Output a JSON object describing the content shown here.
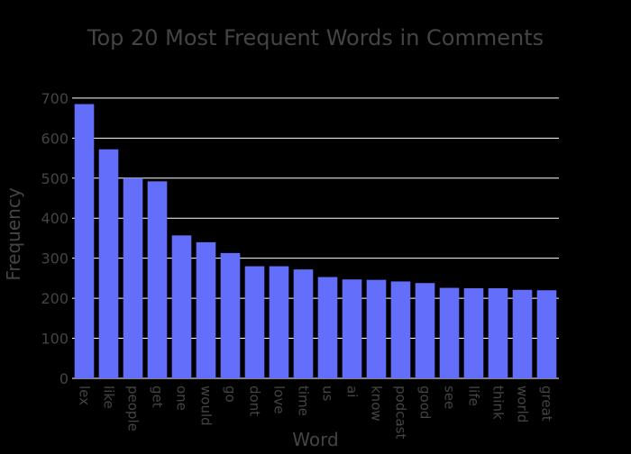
{
  "chart_data": {
    "type": "bar",
    "title": "Top 20 Most Frequent Words in Comments",
    "xlabel": "Word",
    "ylabel": "Frequency",
    "categories": [
      "lex",
      "like",
      "people",
      "get",
      "one",
      "would",
      "go",
      "dont",
      "love",
      "time",
      "us",
      "ai",
      "know",
      "podcast",
      "good",
      "see",
      "life",
      "think",
      "world",
      "great"
    ],
    "values": [
      685,
      572,
      500,
      492,
      357,
      340,
      313,
      280,
      280,
      272,
      253,
      247,
      246,
      242,
      238,
      226,
      225,
      225,
      221,
      220
    ],
    "ylim": [
      0,
      720
    ],
    "yticks": [
      0,
      100,
      200,
      300,
      400,
      500,
      600,
      700
    ],
    "grid": true,
    "colors": {
      "background": "#000000",
      "bar": "#636efa",
      "grid": "#ffffff",
      "text": "#444444"
    }
  }
}
